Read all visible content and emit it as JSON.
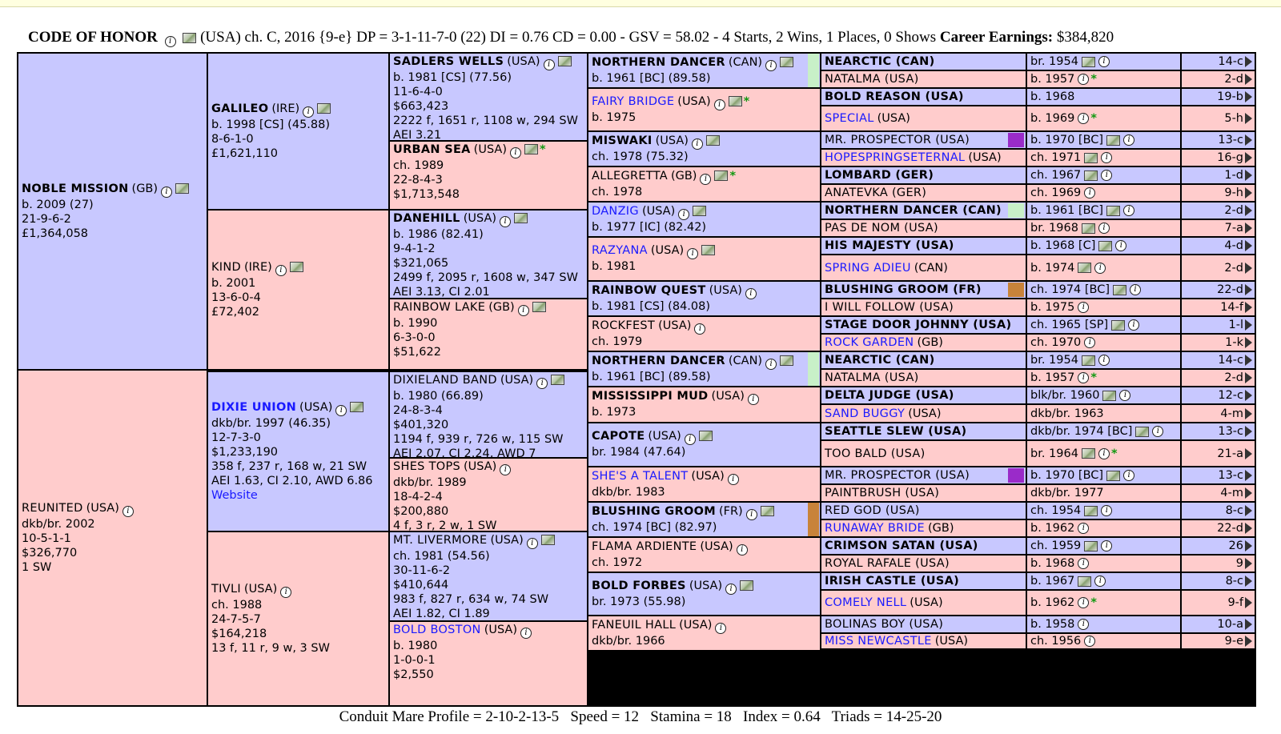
{
  "header": {
    "horse_name": "CODE OF HONOR",
    "details": "(USA) ch. C, 2016 {9-e} DP = 3-1-11-7-0 (22) DI = 0.76   CD = 0.00 - GSV = 58.02 - 4 Starts, 2 Wins, 1 Places, 0 Shows",
    "earnings_label": "Career Earnings:",
    "earnings_value": "$384,820"
  },
  "footer": {
    "text": "Conduit Mare Profile = 2-10-2-13-5   Speed = 12   Stamina = 18   Index = 0.64   Triads = 14-25-20"
  },
  "colors": {
    "male": "#c8c8ff",
    "female": "#ffcccc",
    "purple_swatch": "#9a2bc9",
    "tan_swatch": "#c8833a",
    "green_swatch": "#c8f0c8"
  },
  "gen1": [
    {
      "name": "NOBLE MISSION",
      "nat": "(GB)",
      "bold": true,
      "lines": [
        "b. 2009 (27)",
        "21-9-6-2",
        "£1,364,058"
      ]
    },
    {
      "name": "REUNITED",
      "nat": "(USA)",
      "bold": false,
      "lines": [
        "dkb/br. 2002",
        "10-5-1-1",
        "$326,770",
        "1 SW"
      ]
    }
  ],
  "gen2": [
    {
      "name": "GALILEO",
      "nat": "(IRE)",
      "bold": true,
      "lines": [
        "b. 1998 [CS] (45.88)",
        "8-6-1-0",
        "£1,621,110"
      ]
    },
    {
      "name": "KIND",
      "nat": "(IRE)",
      "bold": false,
      "lines": [
        "b. 2001",
        "13-6-0-4",
        "£72,402"
      ]
    },
    {
      "name": "DIXIE UNION",
      "nat": "(USA)",
      "bold": true,
      "lines": [
        "dkb/br. 1997 (46.35)",
        "12-7-3-0",
        "$1,233,190",
        "358 f, 237 r, 168 w, 21 SW",
        "AEI 1.63, CI 2.10, AWD 6.86"
      ],
      "link": "Website"
    },
    {
      "name": "TIVLI",
      "nat": "(USA)",
      "bold": false,
      "lines": [
        "ch. 1988",
        "24-7-5-7",
        "$164,218",
        "13 f, 11 r, 9 w, 3 SW"
      ]
    }
  ],
  "gen3": [
    {
      "name": "SADLERS WELLS",
      "nat": "(USA)",
      "bold": true,
      "lines": [
        "b. 1981 [CS] (77.56)",
        "11-6-4-0",
        "$663,423",
        "2222 f, 1651 r, 1108 w, 294 SW",
        "AEI 3.21"
      ]
    },
    {
      "name": "URBAN SEA",
      "nat": "(USA)",
      "bold": true,
      "star": "*",
      "lines": [
        "ch. 1989",
        "22-8-4-3",
        "$1,713,548"
      ]
    },
    {
      "name": "DANEHILL",
      "nat": "(USA)",
      "bold": true,
      "lines": [
        "b. 1986 (82.41)",
        "9-4-1-2",
        "$321,065",
        "2499 f, 2095 r, 1608 w, 347 SW",
        "AEI 3.13, CI 2.01"
      ]
    },
    {
      "name": "RAINBOW LAKE",
      "nat": "(GB)",
      "bold": false,
      "lines": [
        "b. 1990",
        "6-3-0-0",
        "$51,622"
      ]
    },
    {
      "name": "DIXIELAND BAND",
      "nat": "(USA)",
      "bold": false,
      "lines": [
        "b. 1980 (66.89)",
        "24-8-3-4",
        "$401,320",
        "1194 f, 939 r, 726 w, 115 SW",
        "AEI 2.07, CI 2.24, AWD 7"
      ]
    },
    {
      "name": "SHES TOPS",
      "nat": "(USA)",
      "bold": false,
      "lines": [
        "dkb/br. 1989",
        "18-4-2-4",
        "$200,880",
        "4 f, 3 r, 2 w, 1 SW"
      ]
    },
    {
      "name": "MT. LIVERMORE",
      "nat": "(USA)",
      "bold": false,
      "lines": [
        "ch. 1981 (54.56)",
        "30-11-6-2",
        "$410,644",
        "983 f, 827 r, 634 w, 74 SW",
        "AEI 1.82, CI 1.89"
      ]
    },
    {
      "name": "BOLD BOSTON",
      "nat": "(USA)",
      "bold": false,
      "link": true,
      "lines": [
        "b. 1980",
        "1-0-0-1",
        "$2,550"
      ]
    }
  ],
  "gen4": [
    {
      "name": "NORTHERN DANCER",
      "nat": "(CAN)",
      "bold": true,
      "lines": [
        "b. 1961 [BC] (89.58)"
      ]
    },
    {
      "name": "FAIRY BRIDGE",
      "nat": "(USA)",
      "bold": false,
      "link": true,
      "star": "*",
      "lines": [
        "b. 1975"
      ]
    },
    {
      "name": "MISWAKI",
      "nat": "(USA)",
      "bold": true,
      "lines": [
        "ch. 1978 (75.32)"
      ]
    },
    {
      "name": "ALLEGRETTA",
      "nat": "(GB)",
      "bold": false,
      "star": "*",
      "lines": [
        "ch. 1978"
      ]
    },
    {
      "name": "DANZIG",
      "nat": "(USA)",
      "bold": false,
      "link": true,
      "lines": [
        "b. 1977 [IC] (82.42)"
      ]
    },
    {
      "name": "RAZYANA",
      "nat": "(USA)",
      "bold": false,
      "link": true,
      "lines": [
        "b. 1981"
      ]
    },
    {
      "name": "RAINBOW QUEST",
      "nat": "(USA)",
      "bold": true,
      "lines": [
        "b. 1981 [CS] (84.08)"
      ]
    },
    {
      "name": "ROCKFEST",
      "nat": "(USA)",
      "bold": false,
      "lines": [
        "ch. 1979"
      ]
    },
    {
      "name": "NORTHERN DANCER",
      "nat": "(CAN)",
      "bold": true,
      "lines": [
        "b. 1961 [BC] (89.58)"
      ]
    },
    {
      "name": "MISSISSIPPI MUD",
      "nat": "(USA)",
      "bold": true,
      "lines": [
        "b. 1973"
      ]
    },
    {
      "name": "CAPOTE",
      "nat": "(USA)",
      "bold": true,
      "lines": [
        "br. 1984 (47.64)"
      ]
    },
    {
      "name": "SHE'S A TALENT",
      "nat": "(USA)",
      "bold": false,
      "link": true,
      "lines": [
        "dkb/br. 1983"
      ]
    },
    {
      "name": "BLUSHING GROOM",
      "nat": "(FR)",
      "bold": true,
      "lines": [
        "ch. 1974 [BC] (82.97)"
      ]
    },
    {
      "name": "FLAMA ARDIENTE",
      "nat": "(USA)",
      "bold": false,
      "lines": [
        "ch. 1972"
      ]
    },
    {
      "name": "BOLD FORBES",
      "nat": "(USA)",
      "bold": true,
      "lines": [
        "br. 1973 (55.98)"
      ]
    },
    {
      "name": "FANEUIL HALL",
      "nat": "(USA)",
      "bold": false,
      "lines": [
        "dkb/br. 1966"
      ]
    }
  ],
  "gen5": [
    {
      "name": "NEARCTIC (CAN)",
      "bold": true,
      "year": "br. 1954",
      "code": "14-c"
    },
    {
      "name": "NATALMA (USA)",
      "bold": false,
      "year": "b. 1957",
      "star": "*",
      "code": "2-d"
    },
    {
      "name": "BOLD REASON (USA)",
      "bold": true,
      "year": "b. 1968",
      "code": "19-b"
    },
    {
      "name": "SPECIAL",
      "nat": "(USA)",
      "bold": false,
      "link": true,
      "year": "b. 1969",
      "star": "*",
      "code": "5-h"
    },
    {
      "name": "MR. PROSPECTOR (USA)",
      "bold": false,
      "year": "b. 1970 [BC]",
      "code": "13-c"
    },
    {
      "name": "HOPESPRINGSETERNAL",
      "nat": "(USA)",
      "bold": false,
      "link": true,
      "year": "ch. 1971",
      "code": "16-g"
    },
    {
      "name": "LOMBARD (GER)",
      "bold": true,
      "year": "ch. 1967",
      "code": "1-d"
    },
    {
      "name": "ANATEVKA (GER)",
      "bold": false,
      "year": "ch. 1969",
      "code": "9-h"
    },
    {
      "name": "NORTHERN DANCER (CAN)",
      "bold": true,
      "year": "b. 1961 [BC]",
      "code": "2-d"
    },
    {
      "name": "PAS DE NOM (USA)",
      "bold": false,
      "year": "br. 1968",
      "code": "7-a"
    },
    {
      "name": "HIS MAJESTY (USA)",
      "bold": true,
      "year": "b. 1968 [C]",
      "code": "4-d"
    },
    {
      "name": "SPRING ADIEU",
      "nat": "(CAN)",
      "bold": false,
      "link": true,
      "year": "b. 1974",
      "code": "2-d"
    },
    {
      "name": "BLUSHING GROOM (FR)",
      "bold": true,
      "year": "ch. 1974 [BC]",
      "code": "22-d"
    },
    {
      "name": "I WILL FOLLOW (USA)",
      "bold": false,
      "year": "b. 1975",
      "code": "14-f"
    },
    {
      "name": "STAGE DOOR JOHNNY (USA)",
      "bold": true,
      "year": "ch. 1965 [SP]",
      "code": "1-l"
    },
    {
      "name": "ROCK GARDEN",
      "nat": "(GB)",
      "bold": false,
      "link": true,
      "year": "ch. 1970",
      "code": "1-k"
    },
    {
      "name": "NEARCTIC (CAN)",
      "bold": true,
      "year": "br. 1954",
      "code": "14-c"
    },
    {
      "name": "NATALMA (USA)",
      "bold": false,
      "year": "b. 1957",
      "star": "*",
      "code": "2-d"
    },
    {
      "name": "DELTA JUDGE (USA)",
      "bold": true,
      "year": "blk/br. 1960",
      "code": "12-c"
    },
    {
      "name": "SAND BUGGY",
      "nat": "(USA)",
      "bold": false,
      "link": true,
      "year": "dkb/br. 1963",
      "code": "4-m"
    },
    {
      "name": "SEATTLE SLEW (USA)",
      "bold": true,
      "year": "dkb/br. 1974 [BC]",
      "code": "13-c"
    },
    {
      "name": "TOO BALD (USA)",
      "bold": false,
      "year": "br. 1964",
      "star": "*",
      "code": "21-a"
    },
    {
      "name": "MR. PROSPECTOR (USA)",
      "bold": false,
      "year": "b. 1970 [BC]",
      "code": "13-c"
    },
    {
      "name": "PAINTBRUSH (USA)",
      "bold": false,
      "year": "dkb/br. 1977",
      "code": "4-m"
    },
    {
      "name": "RED GOD (USA)",
      "bold": false,
      "year": "ch. 1954",
      "code": "8-c"
    },
    {
      "name": "RUNAWAY BRIDE",
      "nat": "(GB)",
      "bold": false,
      "link": true,
      "year": "b. 1962",
      "code": "22-d"
    },
    {
      "name": "CRIMSON SATAN (USA)",
      "bold": true,
      "year": "ch. 1959",
      "code": "26"
    },
    {
      "name": "ROYAL RAFALE (USA)",
      "bold": false,
      "year": "b. 1968",
      "code": "9"
    },
    {
      "name": "IRISH CASTLE (USA)",
      "bold": true,
      "year": "b. 1967",
      "code": "8-c"
    },
    {
      "name": "COMELY NELL",
      "nat": "(USA)",
      "bold": false,
      "link": true,
      "year": "b. 1962",
      "star": "*",
      "code": "9-f"
    },
    {
      "name": "BOLINAS BOY (USA)",
      "bold": false,
      "year": "b. 1958",
      "code": "10-a"
    },
    {
      "name": "MISS NEWCASTLE",
      "nat": "(USA)",
      "bold": false,
      "link": true,
      "year": "ch. 1956",
      "code": "9-e"
    }
  ]
}
